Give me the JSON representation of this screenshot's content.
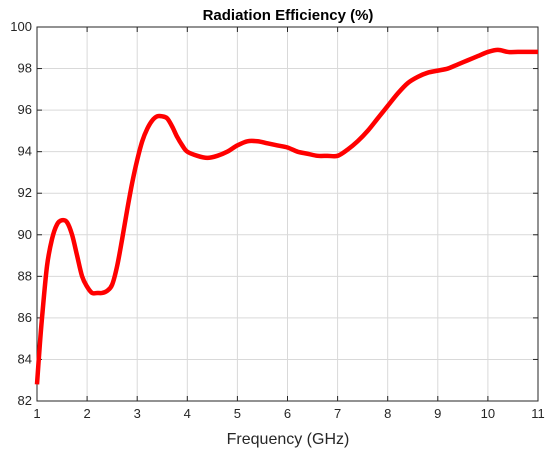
{
  "chart_data": {
    "type": "line",
    "title": "Radiation Efficiency (%)",
    "xlabel": "Frequency (GHz)",
    "ylabel": "",
    "xlim": [
      1,
      11
    ],
    "ylim": [
      82,
      100
    ],
    "xticks": [
      1,
      2,
      3,
      4,
      5,
      6,
      7,
      8,
      9,
      10,
      11
    ],
    "yticks": [
      82,
      84,
      86,
      88,
      90,
      92,
      94,
      96,
      98,
      100
    ],
    "grid": true,
    "series": [
      {
        "color": "#ff0000",
        "x": [
          1.0,
          1.05,
          1.1,
          1.2,
          1.3,
          1.4,
          1.5,
          1.6,
          1.7,
          1.8,
          1.9,
          2.0,
          2.1,
          2.2,
          2.3,
          2.4,
          2.5,
          2.6,
          2.7,
          2.8,
          2.9,
          3.0,
          3.1,
          3.2,
          3.3,
          3.4,
          3.5,
          3.6,
          3.7,
          3.8,
          3.9,
          4.0,
          4.2,
          4.4,
          4.6,
          4.8,
          5.0,
          5.2,
          5.4,
          5.6,
          5.8,
          6.0,
          6.2,
          6.4,
          6.6,
          6.8,
          7.0,
          7.2,
          7.4,
          7.6,
          7.8,
          8.0,
          8.2,
          8.4,
          8.6,
          8.8,
          9.0,
          9.2,
          9.4,
          9.6,
          9.8,
          10.0,
          10.2,
          10.4,
          10.6,
          10.8,
          11.0
        ],
        "y": [
          82.8,
          84.5,
          86.0,
          88.5,
          89.8,
          90.5,
          90.7,
          90.6,
          90.0,
          89.0,
          88.0,
          87.5,
          87.2,
          87.2,
          87.2,
          87.3,
          87.6,
          88.5,
          89.8,
          91.2,
          92.5,
          93.6,
          94.5,
          95.1,
          95.5,
          95.7,
          95.7,
          95.6,
          95.2,
          94.7,
          94.3,
          94.0,
          93.8,
          93.7,
          93.8,
          94.0,
          94.3,
          94.5,
          94.5,
          94.4,
          94.3,
          94.2,
          94.0,
          93.9,
          93.8,
          93.8,
          93.8,
          94.1,
          94.5,
          95.0,
          95.6,
          96.2,
          96.8,
          97.3,
          97.6,
          97.8,
          97.9,
          98.0,
          98.2,
          98.4,
          98.6,
          98.8,
          98.9,
          98.8,
          98.8,
          98.8,
          98.8
        ]
      }
    ]
  }
}
